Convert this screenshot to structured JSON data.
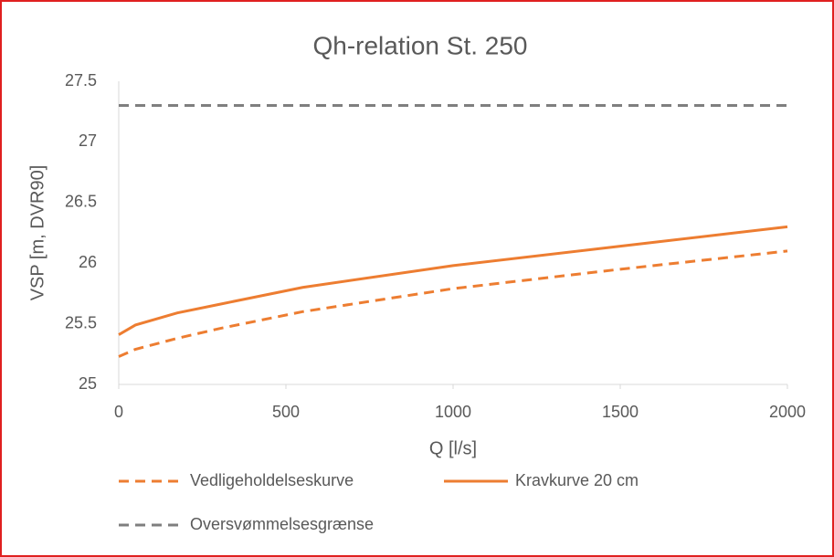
{
  "chart_data": {
    "type": "line",
    "title": "Qh-relation St. 250",
    "x_label": "Q [l/s]",
    "y_label": "VSP [m, DVR90]",
    "x": [
      0,
      50,
      175,
      300,
      550,
      1000,
      1500,
      2000
    ],
    "series": [
      {
        "name": "Vedligeholdelseskurve",
        "color": "#ED7D31",
        "dash": true,
        "values": [
          25.23,
          25.29,
          25.38,
          25.46,
          25.6,
          25.79,
          25.95,
          26.1
        ]
      },
      {
        "name": "Kravkurve 20 cm",
        "color": "#ED7D31",
        "dash": false,
        "values": [
          25.41,
          25.49,
          25.59,
          25.66,
          25.8,
          25.98,
          26.14,
          26.3
        ]
      },
      {
        "name": "Oversvømmelsesgrænse",
        "color": "#7F7F7F",
        "dash": true,
        "values": [
          27.3,
          27.3,
          27.3,
          27.3,
          27.3,
          27.3,
          27.3,
          27.3
        ]
      }
    ],
    "xlim": [
      0,
      2000
    ],
    "xticks": [
      0,
      500,
      1000,
      1500,
      2000
    ],
    "ylim": [
      25,
      27.5
    ],
    "yticks": [
      25,
      25.5,
      26,
      26.5,
      27,
      27.5
    ],
    "grid": false,
    "legend": "bottom"
  }
}
